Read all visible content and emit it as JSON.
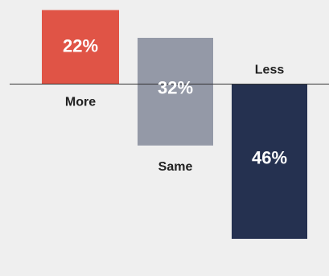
{
  "chart_data": {
    "type": "bar",
    "categories": [
      "More",
      "Same",
      "Less"
    ],
    "values": [
      22,
      -32,
      -46
    ],
    "value_labels": [
      "22%",
      "32%",
      "46%"
    ],
    "colors": [
      "#e05446",
      "#9499a7",
      "#253150"
    ],
    "baseline_color": "#333333",
    "background": "#efefef",
    "grid": false,
    "title": "",
    "xlabel": "",
    "ylabel": ""
  }
}
